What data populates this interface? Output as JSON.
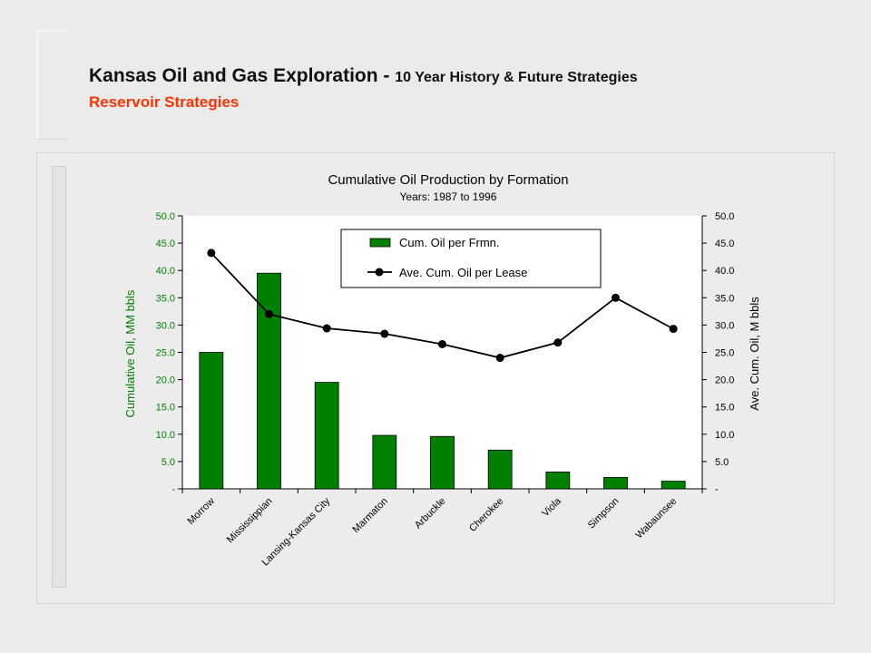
{
  "header": {
    "title_main": "Kansas Oil and Gas Exploration - ",
    "title_sub": "10 Year History & Future Strategies",
    "subtitle": "Reservoir Strategies"
  },
  "colors": {
    "bar": "#008000",
    "line": "#000000",
    "ylabel_left": "#008000",
    "subtitle": "#ff3300"
  },
  "chart_data": {
    "type": "bar",
    "title": "Cumulative Oil Production by Formation",
    "subtitle": "Years: 1987 to 1996",
    "categories": [
      "Morrow",
      "Mississippian",
      "Lansing-Kansas City",
      "Marmaton",
      "Arbuckle",
      "Cherokee",
      "Viola",
      "Simpson",
      "Wabaunsee"
    ],
    "series": [
      {
        "name": "Cum. Oil per Frmn.",
        "type": "bar",
        "axis": "left",
        "values": [
          25.0,
          39.5,
          19.5,
          9.8,
          9.6,
          7.1,
          3.1,
          2.1,
          1.4
        ]
      },
      {
        "name": "Ave. Cum. Oil per Lease",
        "type": "line",
        "axis": "right",
        "values": [
          43.2,
          32.0,
          29.4,
          28.4,
          26.5,
          24.0,
          26.8,
          35.0,
          29.3
        ]
      }
    ],
    "ylabel_left": "Cumulative Oil, MM bbls",
    "ylabel_right": "Ave. Cum. Oil, M bbls",
    "ylim": [
      0,
      50
    ],
    "yticks": [
      "-",
      "5.0",
      "10.0",
      "15.0",
      "20.0",
      "25.0",
      "30.0",
      "35.0",
      "40.0",
      "45.0",
      "50.0"
    ],
    "legend_position": "top-center",
    "grid": false
  }
}
